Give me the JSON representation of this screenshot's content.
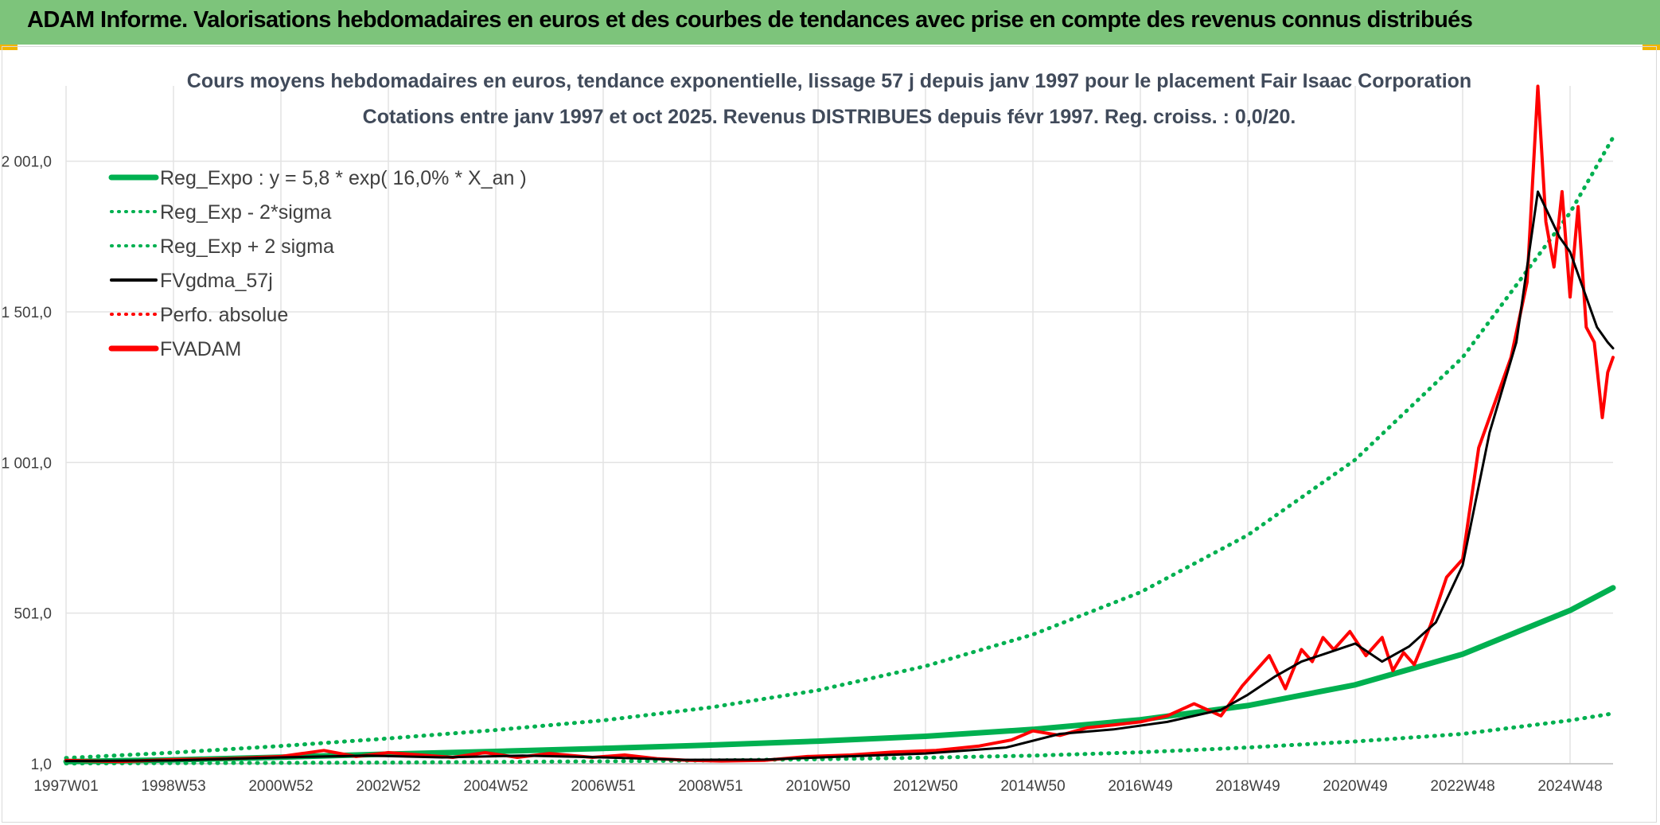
{
  "banner": {
    "title": "ADAM Informe. Valorisations hebdomadaires en euros et des courbes de tendances avec prise en compte des revenus connus distribués"
  },
  "colors": {
    "banner_bg": "#7dc47b",
    "regression": "#00b050",
    "smoothed": "#000000",
    "price": "#ff0000",
    "grid": "#e3e3e3"
  },
  "chart_data": {
    "type": "line",
    "title_lines": [
      "Cours moyens hebdomadaires en euros, tendance exponentielle, lissage 57 j depuis janv 1997 pour le placement Fair Isaac Corporation",
      "Cotations entre janv 1997 et oct 2025. Revenus DISTRIBUES depuis févr 1997. Reg. croiss. : 0,0/20."
    ],
    "x_range": [
      1997.0,
      2025.8
    ],
    "ylim": [
      1,
      2251
    ],
    "y_ticks": [
      {
        "value": 1,
        "label": "1,0"
      },
      {
        "value": 501,
        "label": "501,0"
      },
      {
        "value": 1001,
        "label": "1 001,0"
      },
      {
        "value": 1501,
        "label": "1 501,0"
      },
      {
        "value": 2001,
        "label": "2 001,0"
      }
    ],
    "x_ticks": [
      {
        "value": 1997.0,
        "label": "1997W01"
      },
      {
        "value": 1999.0,
        "label": "1998W53"
      },
      {
        "value": 2001.0,
        "label": "2000W52"
      },
      {
        "value": 2003.0,
        "label": "2002W52"
      },
      {
        "value": 2005.0,
        "label": "2004W52"
      },
      {
        "value": 2007.0,
        "label": "2006W51"
      },
      {
        "value": 2009.0,
        "label": "2008W51"
      },
      {
        "value": 2011.0,
        "label": "2010W50"
      },
      {
        "value": 2013.0,
        "label": "2012W50"
      },
      {
        "value": 2015.0,
        "label": "2014W50"
      },
      {
        "value": 2017.0,
        "label": "2016W49"
      },
      {
        "value": 2019.0,
        "label": "2018W49"
      },
      {
        "value": 2021.0,
        "label": "2020W49"
      },
      {
        "value": 2023.0,
        "label": "2022W48"
      },
      {
        "value": 2025.0,
        "label": "2024W48"
      }
    ],
    "grid": true,
    "legend": {
      "position": "top-left",
      "entries": [
        {
          "label": "Reg_Expo : y = 5,8 * exp( 16,0% *  X_an )",
          "color": "#00b050",
          "style": "solid-thick"
        },
        {
          "label": "Reg_Exp - 2*sigma",
          "color": "#00b050",
          "style": "dotted"
        },
        {
          "label": "Reg_Exp + 2 sigma",
          "color": "#00b050",
          "style": "dotted"
        },
        {
          "label": "FVgdma_57j",
          "color": "#000000",
          "style": "solid"
        },
        {
          "label": "Perfo. absolue",
          "color": "#ff0000",
          "style": "dotted"
        },
        {
          "label": "FVADAM",
          "color": "#ff0000",
          "style": "solid-thick"
        }
      ]
    },
    "series": [
      {
        "name": "Reg_Expo",
        "x": [
          1997.0,
          1999.0,
          2001.0,
          2003.0,
          2005.0,
          2007.0,
          2009.0,
          2011.0,
          2013.0,
          2015.0,
          2017.0,
          2019.0,
          2021.0,
          2023.0,
          2025.0,
          2025.8
        ],
        "y": [
          8,
          14,
          23,
          33,
          42,
          52,
          63,
          76,
          92,
          115,
          147,
          194,
          263,
          365,
          510,
          585
        ]
      },
      {
        "name": "Reg_Exp - 2*sigma",
        "x": [
          1997.0,
          1999.0,
          2001.0,
          2003.0,
          2005.0,
          2007.0,
          2009.0,
          2011.0,
          2013.0,
          2015.0,
          2017.0,
          2019.0,
          2021.0,
          2023.0,
          2025.0,
          2025.8
        ],
        "y": [
          2,
          3,
          4,
          5,
          7,
          9,
          12,
          16,
          21,
          28,
          39,
          55,
          75,
          100,
          145,
          168
        ]
      },
      {
        "name": "Reg_Exp + 2 sigma",
        "x": [
          1997.0,
          1999.0,
          2001.0,
          2003.0,
          2005.0,
          2007.0,
          2009.0,
          2011.0,
          2013.0,
          2015.0,
          2017.0,
          2019.0,
          2021.0,
          2023.0,
          2025.0,
          2025.8
        ],
        "y": [
          20,
          38,
          60,
          85,
          113,
          145,
          188,
          245,
          325,
          430,
          570,
          760,
          1010,
          1350,
          1830,
          2080
        ]
      },
      {
        "name": "FVgdma_57j",
        "x": [
          1997.0,
          1999.0,
          2001.0,
          2002.6,
          2004.0,
          2005.5,
          2007.0,
          2008.5,
          2010.0,
          2011.5,
          2013.0,
          2014.5,
          2015.5,
          2016.5,
          2017.5,
          2018.5,
          2019.0,
          2019.5,
          2020.0,
          2020.5,
          2021.0,
          2021.5,
          2022.0,
          2022.5,
          2023.0,
          2023.5,
          2024.0,
          2024.4,
          2024.8,
          2025.0,
          2025.3,
          2025.5,
          2025.7,
          2025.8
        ],
        "y": [
          10,
          12,
          22,
          28,
          22,
          28,
          22,
          14,
          15,
          25,
          35,
          55,
          100,
          115,
          140,
          180,
          230,
          290,
          340,
          370,
          400,
          340,
          390,
          470,
          660,
          1100,
          1400,
          1900,
          1750,
          1700,
          1550,
          1450,
          1400,
          1380
        ]
      },
      {
        "name": "FVADAM",
        "x": [
          1997.0,
          1998.0,
          1999.0,
          2000.0,
          2001.0,
          2001.8,
          2002.4,
          2003.0,
          2003.6,
          2004.2,
          2004.8,
          2005.4,
          2006.0,
          2006.8,
          2007.4,
          2008.0,
          2008.6,
          2009.2,
          2010.0,
          2010.8,
          2011.6,
          2012.4,
          2013.2,
          2014.0,
          2014.6,
          2015.0,
          2015.5,
          2016.0,
          2016.5,
          2017.0,
          2017.5,
          2018.0,
          2018.5,
          2018.9,
          2019.1,
          2019.4,
          2019.7,
          2020.0,
          2020.2,
          2020.4,
          2020.6,
          2020.9,
          2021.2,
          2021.5,
          2021.7,
          2021.9,
          2022.1,
          2022.4,
          2022.7,
          2023.0,
          2023.3,
          2023.6,
          2023.9,
          2024.2,
          2024.4,
          2024.55,
          2024.7,
          2024.85,
          2025.0,
          2025.15,
          2025.3,
          2025.45,
          2025.6,
          2025.7,
          2025.8
        ],
        "y": [
          12,
          8,
          15,
          18,
          25,
          45,
          25,
          38,
          30,
          22,
          38,
          22,
          35,
          22,
          30,
          18,
          12,
          10,
          12,
          25,
          30,
          40,
          45,
          60,
          80,
          110,
          95,
          120,
          130,
          140,
          160,
          200,
          160,
          260,
          300,
          360,
          250,
          380,
          340,
          420,
          380,
          440,
          360,
          420,
          310,
          370,
          330,
          460,
          620,
          680,
          1050,
          1200,
          1350,
          1600,
          2250,
          1800,
          1650,
          1900,
          1550,
          1850,
          1450,
          1400,
          1150,
          1300,
          1350
        ]
      }
    ]
  }
}
